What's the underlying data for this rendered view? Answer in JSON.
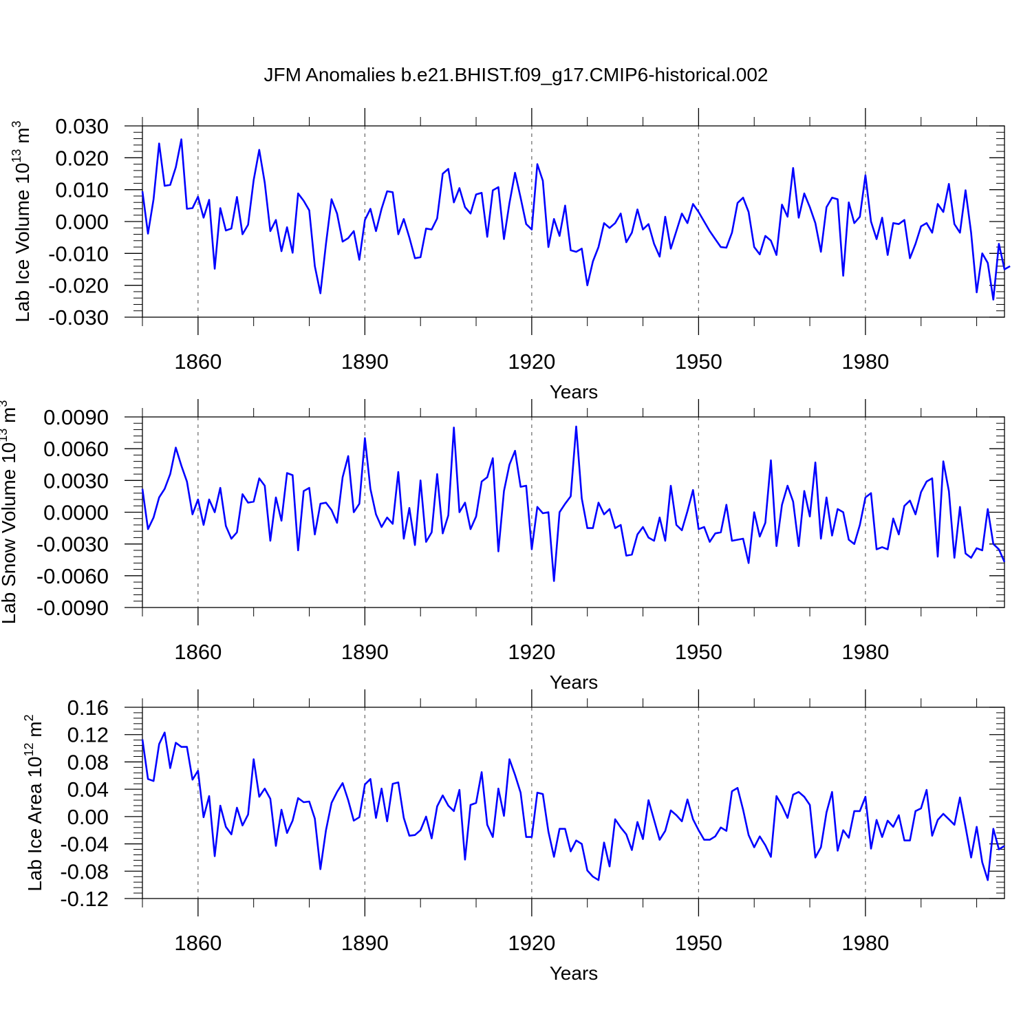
{
  "title": "JFM Anomalies b.e21.BHIST.f09_g17.CMIP6-historical.002",
  "chart_data": [
    {
      "type": "line",
      "ylabel": "Lab Ice Volume 10",
      "ylabel_exp": "13",
      "ylabel_unit": " m",
      "ylabel_unit_exp": "3",
      "xlabel": "Years",
      "x_start": 1850,
      "x_end": 2005,
      "xticks": [
        "1860",
        "1890",
        "1920",
        "1950",
        "1980"
      ],
      "ylim": [
        -0.03,
        0.03
      ],
      "yticks": [
        "0.030",
        "0.020",
        "0.010",
        "0.000",
        "-0.010",
        "-0.020",
        "-0.030"
      ],
      "ytick_values": [
        0.03,
        0.02,
        0.01,
        0.0,
        -0.01,
        -0.02,
        -0.03
      ],
      "series_color": "#0000ff",
      "values": [
        0.0095,
        -0.0038,
        0.007,
        0.0245,
        0.0112,
        0.0115,
        0.017,
        0.0258,
        0.004,
        0.0042,
        0.0078,
        0.0012,
        0.0068,
        -0.0148,
        0.0042,
        -0.0028,
        -0.0022,
        0.0077,
        -0.004,
        -0.001,
        0.013,
        0.0225,
        0.0122,
        -0.003,
        0.0005,
        -0.0093,
        -0.0018,
        -0.0098,
        0.0088,
        0.0065,
        0.0035,
        -0.014,
        -0.0225,
        -0.007,
        0.007,
        0.0025,
        -0.0063,
        -0.0052,
        -0.003,
        -0.012,
        0.0005,
        0.004,
        -0.003,
        0.004,
        0.0095,
        0.0092,
        -0.004,
        0.0008,
        -0.005,
        -0.0115,
        -0.0112,
        -0.0022,
        -0.0025,
        0.001,
        0.015,
        0.0165,
        0.006,
        0.0105,
        0.0045,
        0.0025,
        0.0085,
        0.009,
        -0.0048,
        0.0098,
        0.0108,
        -0.0055,
        0.0058,
        0.0153,
        0.0075,
        -0.0008,
        -0.0025,
        0.018,
        0.0128,
        -0.008,
        0.0008,
        -0.0045,
        0.005,
        -0.009,
        -0.0095,
        -0.0085,
        -0.02,
        -0.0125,
        -0.008,
        -0.0005,
        -0.002,
        -0.0005,
        0.0025,
        -0.0065,
        -0.0035,
        0.0038,
        -0.0025,
        -0.0008,
        -0.007,
        -0.011,
        0.0015,
        -0.0085,
        -0.003,
        0.0025,
        -0.0005,
        0.0055,
        0.003,
        0.0,
        -0.003,
        -0.0055,
        -0.008,
        -0.0082,
        -0.0035,
        0.0058,
        0.0075,
        0.003,
        -0.008,
        -0.0103,
        -0.0045,
        -0.006,
        -0.0105,
        0.0053,
        0.0015,
        0.0168,
        0.0012,
        0.0088,
        0.0045,
        -0.0005,
        -0.0095,
        0.0045,
        0.0075,
        0.007,
        -0.017,
        0.006,
        -0.0005,
        0.0015,
        0.0145,
        0.0,
        -0.0055,
        0.0012,
        -0.0105,
        -0.0005,
        -0.0008,
        0.0005,
        -0.0115,
        -0.007,
        -0.0015,
        -0.0005,
        -0.0035,
        0.0055,
        0.003,
        0.0118,
        -0.0008,
        -0.0035,
        0.0098,
        -0.0035,
        -0.0222,
        -0.01,
        -0.013,
        -0.0245,
        -0.007,
        -0.015,
        -0.014
      ]
    },
    {
      "type": "line",
      "ylabel": "Lab Snow Volume 10",
      "ylabel_exp": "13",
      "ylabel_unit": " m",
      "ylabel_unit_exp": "3",
      "xlabel": "Years",
      "x_start": 1850,
      "x_end": 2005,
      "xticks": [
        "1860",
        "1890",
        "1920",
        "1950",
        "1980"
      ],
      "ylim": [
        -0.009,
        0.009
      ],
      "yticks": [
        "0.0090",
        "0.0060",
        "0.0030",
        "0.0000",
        "-0.0030",
        "-0.0060",
        "-0.0090"
      ],
      "ytick_values": [
        0.009,
        0.006,
        0.003,
        0.0,
        -0.003,
        -0.006,
        -0.009
      ],
      "series_color": "#0000ff",
      "values": [
        0.0022,
        -0.0016,
        -0.0005,
        0.0014,
        0.0022,
        0.0036,
        0.0061,
        0.0044,
        0.0029,
        -0.0002,
        0.0012,
        -0.0012,
        0.0012,
        0.0,
        0.0023,
        -0.0013,
        -0.0025,
        -0.0019,
        0.0017,
        0.0009,
        0.001,
        0.0032,
        0.0025,
        -0.0027,
        0.0014,
        -0.0008,
        0.0037,
        0.0035,
        -0.0036,
        0.002,
        0.0023,
        -0.0021,
        0.0008,
        0.0009,
        0.0002,
        -0.001,
        0.0033,
        0.0053,
        0.0,
        0.0008,
        0.007,
        0.0022,
        -0.0002,
        -0.0014,
        -0.0005,
        -0.0011,
        0.0038,
        -0.0025,
        0.0004,
        -0.0031,
        0.003,
        -0.0028,
        -0.0019,
        0.0036,
        -0.002,
        -0.0003,
        0.008,
        0.0,
        0.0009,
        -0.0016,
        -0.0004,
        0.0029,
        0.0033,
        0.0051,
        -0.0037,
        0.002,
        0.0045,
        0.0058,
        0.0024,
        0.0025,
        -0.0035,
        0.0005,
        -0.0001,
        0.0,
        -0.0065,
        0.0,
        0.0008,
        0.0015,
        0.0081,
        0.0013,
        -0.0015,
        -0.0015,
        0.0009,
        -0.0002,
        0.0003,
        -0.0015,
        -0.0012,
        -0.0041,
        -0.004,
        -0.0021,
        -0.0014,
        -0.0024,
        -0.0027,
        -0.0005,
        -0.0027,
        0.0025,
        -0.0012,
        -0.0017,
        0.0001,
        0.0021,
        -0.0016,
        -0.0014,
        -0.0028,
        -0.002,
        -0.0019,
        0.0007,
        -0.0027,
        -0.0026,
        -0.0025,
        -0.0048,
        0.0,
        -0.0023,
        -0.001,
        0.0049,
        -0.0032,
        0.0007,
        0.0025,
        0.001,
        -0.0032,
        0.002,
        -0.0004,
        0.0047,
        -0.0025,
        0.0014,
        -0.0022,
        0.0003,
        0.0,
        -0.0026,
        -0.003,
        -0.0012,
        0.0014,
        0.0018,
        -0.0035,
        -0.0033,
        -0.0035,
        -0.0006,
        -0.0021,
        0.0006,
        0.0011,
        -0.0002,
        0.0019,
        0.0029,
        0.0032,
        -0.0042,
        0.0048,
        0.002,
        -0.0043,
        0.0005,
        -0.0039,
        -0.0043,
        -0.0034,
        -0.0036,
        0.0003,
        -0.003,
        -0.0035,
        -0.0047
      ]
    },
    {
      "type": "line",
      "ylabel": "Lab Ice Area 10",
      "ylabel_exp": "12",
      "ylabel_unit": " m",
      "ylabel_unit_exp": "2",
      "xlabel": "Years",
      "x_start": 1850,
      "x_end": 2005,
      "xticks": [
        "1860",
        "1890",
        "1920",
        "1950",
        "1980"
      ],
      "ylim": [
        -0.12,
        0.16
      ],
      "yticks": [
        "0.16",
        "0.12",
        "0.08",
        "0.04",
        "0.00",
        "-0.04",
        "-0.08",
        "-0.12"
      ],
      "ytick_values": [
        0.16,
        0.12,
        0.08,
        0.04,
        0.0,
        -0.04,
        -0.08,
        -0.12
      ],
      "series_color": "#0000ff",
      "values": [
        0.113,
        0.055,
        0.052,
        0.106,
        0.123,
        0.071,
        0.108,
        0.102,
        0.102,
        0.054,
        0.067,
        -0.001,
        0.03,
        -0.058,
        0.016,
        -0.015,
        -0.026,
        0.013,
        -0.013,
        0.003,
        0.084,
        0.029,
        0.041,
        0.026,
        -0.043,
        0.01,
        -0.024,
        -0.006,
        0.027,
        0.021,
        0.022,
        -0.003,
        -0.077,
        -0.02,
        0.02,
        0.036,
        0.049,
        0.024,
        -0.006,
        -0.001,
        0.047,
        0.055,
        -0.002,
        0.041,
        -0.007,
        0.048,
        0.05,
        -0.002,
        -0.028,
        -0.027,
        -0.02,
        0.0,
        -0.032,
        0.015,
        0.031,
        0.016,
        0.008,
        0.039,
        -0.063,
        0.017,
        0.02,
        0.065,
        -0.012,
        -0.03,
        0.041,
        0.001,
        0.084,
        0.061,
        0.035,
        -0.03,
        -0.03,
        0.035,
        0.033,
        -0.022,
        -0.059,
        -0.018,
        -0.018,
        -0.051,
        -0.035,
        -0.04,
        -0.079,
        -0.088,
        -0.093,
        -0.038,
        -0.073,
        -0.004,
        -0.016,
        -0.026,
        -0.049,
        -0.008,
        -0.033,
        0.024,
        -0.005,
        -0.034,
        -0.021,
        0.009,
        0.002,
        -0.007,
        0.025,
        -0.004,
        -0.02,
        -0.034,
        -0.034,
        -0.029,
        -0.016,
        -0.021,
        0.037,
        0.042,
        0.01,
        -0.027,
        -0.045,
        -0.029,
        -0.042,
        -0.059,
        0.03,
        0.016,
        -0.002,
        0.032,
        0.036,
        0.029,
        0.017,
        -0.06,
        -0.045,
        0.006,
        0.036,
        -0.05,
        -0.02,
        -0.031,
        0.008,
        0.008,
        0.029,
        -0.047,
        -0.005,
        -0.03,
        -0.006,
        -0.015,
        0.002,
        -0.035,
        -0.035,
        0.008,
        0.012,
        0.039,
        -0.028,
        -0.005,
        0.004,
        -0.004,
        -0.012,
        0.028,
        -0.015,
        -0.06,
        -0.015,
        -0.067,
        -0.093,
        -0.018,
        -0.048,
        -0.043
      ]
    }
  ]
}
